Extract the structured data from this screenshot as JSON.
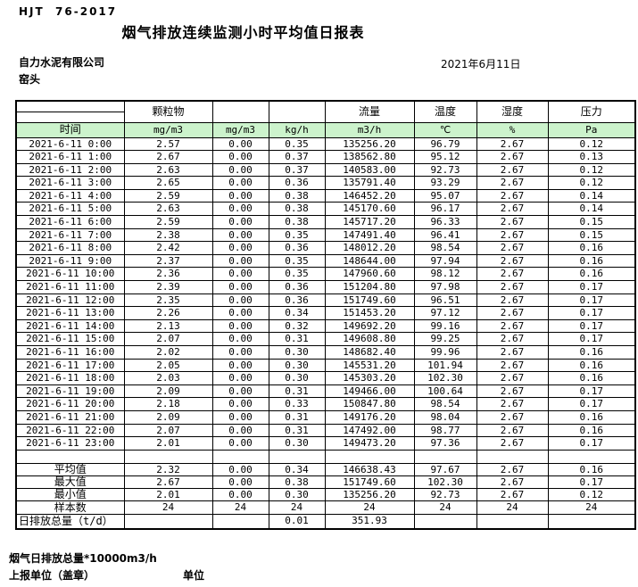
{
  "page": {
    "standard_code": "HJT  76-2017",
    "title": "烟气排放连续监测小时平均值日报表",
    "company": "自力水泥有限公司",
    "location": "窑头",
    "date": "2021年6月11日"
  },
  "colors": {
    "unit_row_green": "#ccf3cc",
    "border": "#000000",
    "background": "#ffffff"
  },
  "table": {
    "header": {
      "time_label": "时间",
      "group_labels": [
        "颗粒物",
        "",
        "",
        "流量",
        "温度",
        "湿度",
        "压力"
      ],
      "unit_labels": [
        "mg/m3",
        "mg/m3",
        "kg/h",
        "m3/h",
        "℃",
        "%",
        "Pa"
      ]
    },
    "rows": [
      {
        "time": "2021-6-11 0:00",
        "values": [
          "2.57",
          "0.00",
          "0.35",
          "135256.20",
          "96.79",
          "2.67",
          "0.12"
        ]
      },
      {
        "time": "2021-6-11 1:00",
        "values": [
          "2.67",
          "0.00",
          "0.37",
          "138562.80",
          "95.12",
          "2.67",
          "0.13"
        ]
      },
      {
        "time": "2021-6-11 2:00",
        "values": [
          "2.63",
          "0.00",
          "0.37",
          "140583.00",
          "92.73",
          "2.67",
          "0.12"
        ]
      },
      {
        "time": "2021-6-11 3:00",
        "values": [
          "2.65",
          "0.00",
          "0.36",
          "135791.40",
          "93.29",
          "2.67",
          "0.12"
        ]
      },
      {
        "time": "2021-6-11 4:00",
        "values": [
          "2.59",
          "0.00",
          "0.38",
          "146452.20",
          "95.07",
          "2.67",
          "0.14"
        ]
      },
      {
        "time": "2021-6-11 5:00",
        "values": [
          "2.63",
          "0.00",
          "0.38",
          "145170.60",
          "96.17",
          "2.67",
          "0.14"
        ]
      },
      {
        "time": "2021-6-11 6:00",
        "values": [
          "2.59",
          "0.00",
          "0.38",
          "145717.20",
          "96.33",
          "2.67",
          "0.15"
        ]
      },
      {
        "time": "2021-6-11 7:00",
        "values": [
          "2.38",
          "0.00",
          "0.35",
          "147491.40",
          "96.41",
          "2.67",
          "0.15"
        ]
      },
      {
        "time": "2021-6-11 8:00",
        "values": [
          "2.42",
          "0.00",
          "0.36",
          "148012.20",
          "98.54",
          "2.67",
          "0.16"
        ]
      },
      {
        "time": "2021-6-11 9:00",
        "values": [
          "2.37",
          "0.00",
          "0.35",
          "148644.00",
          "97.94",
          "2.67",
          "0.16"
        ]
      },
      {
        "time": "2021-6-11 10:00",
        "values": [
          "2.36",
          "0.00",
          "0.35",
          "147960.60",
          "98.12",
          "2.67",
          "0.16"
        ]
      },
      {
        "time": "2021-6-11 11:00",
        "values": [
          "2.39",
          "0.00",
          "0.36",
          "151204.80",
          "97.98",
          "2.67",
          "0.17"
        ]
      },
      {
        "time": "2021-6-11 12:00",
        "values": [
          "2.35",
          "0.00",
          "0.36",
          "151749.60",
          "96.51",
          "2.67",
          "0.17"
        ]
      },
      {
        "time": "2021-6-11 13:00",
        "values": [
          "2.26",
          "0.00",
          "0.34",
          "151453.20",
          "97.12",
          "2.67",
          "0.17"
        ]
      },
      {
        "time": "2021-6-11 14:00",
        "values": [
          "2.13",
          "0.00",
          "0.32",
          "149692.20",
          "99.16",
          "2.67",
          "0.17"
        ]
      },
      {
        "time": "2021-6-11 15:00",
        "values": [
          "2.07",
          "0.00",
          "0.31",
          "149608.80",
          "99.25",
          "2.67",
          "0.17"
        ]
      },
      {
        "time": "2021-6-11 16:00",
        "values": [
          "2.02",
          "0.00",
          "0.30",
          "148682.40",
          "99.96",
          "2.67",
          "0.16"
        ]
      },
      {
        "time": "2021-6-11 17:00",
        "values": [
          "2.05",
          "0.00",
          "0.30",
          "145531.20",
          "101.94",
          "2.67",
          "0.16"
        ]
      },
      {
        "time": "2021-6-11 18:00",
        "values": [
          "2.03",
          "0.00",
          "0.30",
          "145303.20",
          "102.30",
          "2.67",
          "0.16"
        ]
      },
      {
        "time": "2021-6-11 19:00",
        "values": [
          "2.09",
          "0.00",
          "0.31",
          "149466.00",
          "100.64",
          "2.67",
          "0.17"
        ]
      },
      {
        "time": "2021-6-11 20:00",
        "values": [
          "2.18",
          "0.00",
          "0.33",
          "150847.80",
          "98.54",
          "2.67",
          "0.17"
        ]
      },
      {
        "time": "2021-6-11 21:00",
        "values": [
          "2.09",
          "0.00",
          "0.31",
          "149176.20",
          "98.04",
          "2.67",
          "0.16"
        ]
      },
      {
        "time": "2021-6-11 22:00",
        "values": [
          "2.07",
          "0.00",
          "0.31",
          "147492.00",
          "98.77",
          "2.67",
          "0.16"
        ]
      },
      {
        "time": "2021-6-11 23:00",
        "values": [
          "2.01",
          "0.00",
          "0.30",
          "149473.20",
          "97.36",
          "2.67",
          "0.17"
        ]
      }
    ],
    "summary": [
      {
        "label": "平均值",
        "values": [
          "2.32",
          "0.00",
          "0.34",
          "146638.43",
          "97.67",
          "2.67",
          "0.16"
        ]
      },
      {
        "label": "最大值",
        "values": [
          "2.67",
          "0.00",
          "0.38",
          "151749.60",
          "102.30",
          "2.67",
          "0.17"
        ]
      },
      {
        "label": "最小值",
        "values": [
          "2.01",
          "0.00",
          "0.30",
          "135256.20",
          "92.73",
          "2.67",
          "0.12"
        ]
      },
      {
        "label": "样本数",
        "values": [
          "24",
          "24",
          "24",
          "24",
          "24",
          "24",
          "24"
        ]
      },
      {
        "label": "日排放总量（t/d）",
        "values": [
          "",
          "",
          "0.01",
          "351.93",
          "",
          "",
          ""
        ]
      }
    ]
  },
  "footer": {
    "note": "烟气日排放总量*10000m3/h",
    "report_unit_label": "上报单位（盖章）",
    "unit_label": "单位"
  }
}
